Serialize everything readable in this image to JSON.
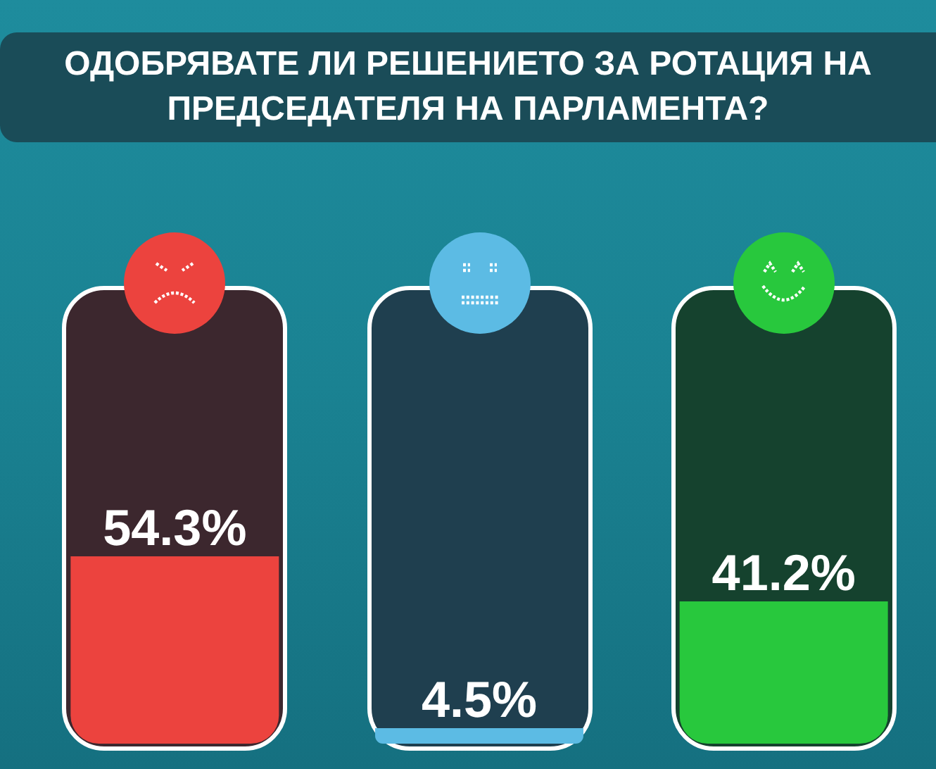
{
  "chart_data": {
    "type": "bar",
    "title": "ОДОБРЯВАТЕ ЛИ РЕШЕНИЕТО ЗА РОТАЦИЯ НА ПРЕДСЕДАТЕЛЯ НА ПАРЛАМЕНТА?",
    "categories": [
      null,
      null,
      null
    ],
    "values": [
      54.3,
      4.5,
      41.2
    ],
    "colors": [
      "#ec433e",
      "#5cbbe4",
      "#28c83d"
    ],
    "value_labels": [
      "54.3%",
      "4.5%",
      "41.2%"
    ],
    "grid": false,
    "legend": false,
    "tick_labels": false
  }
}
